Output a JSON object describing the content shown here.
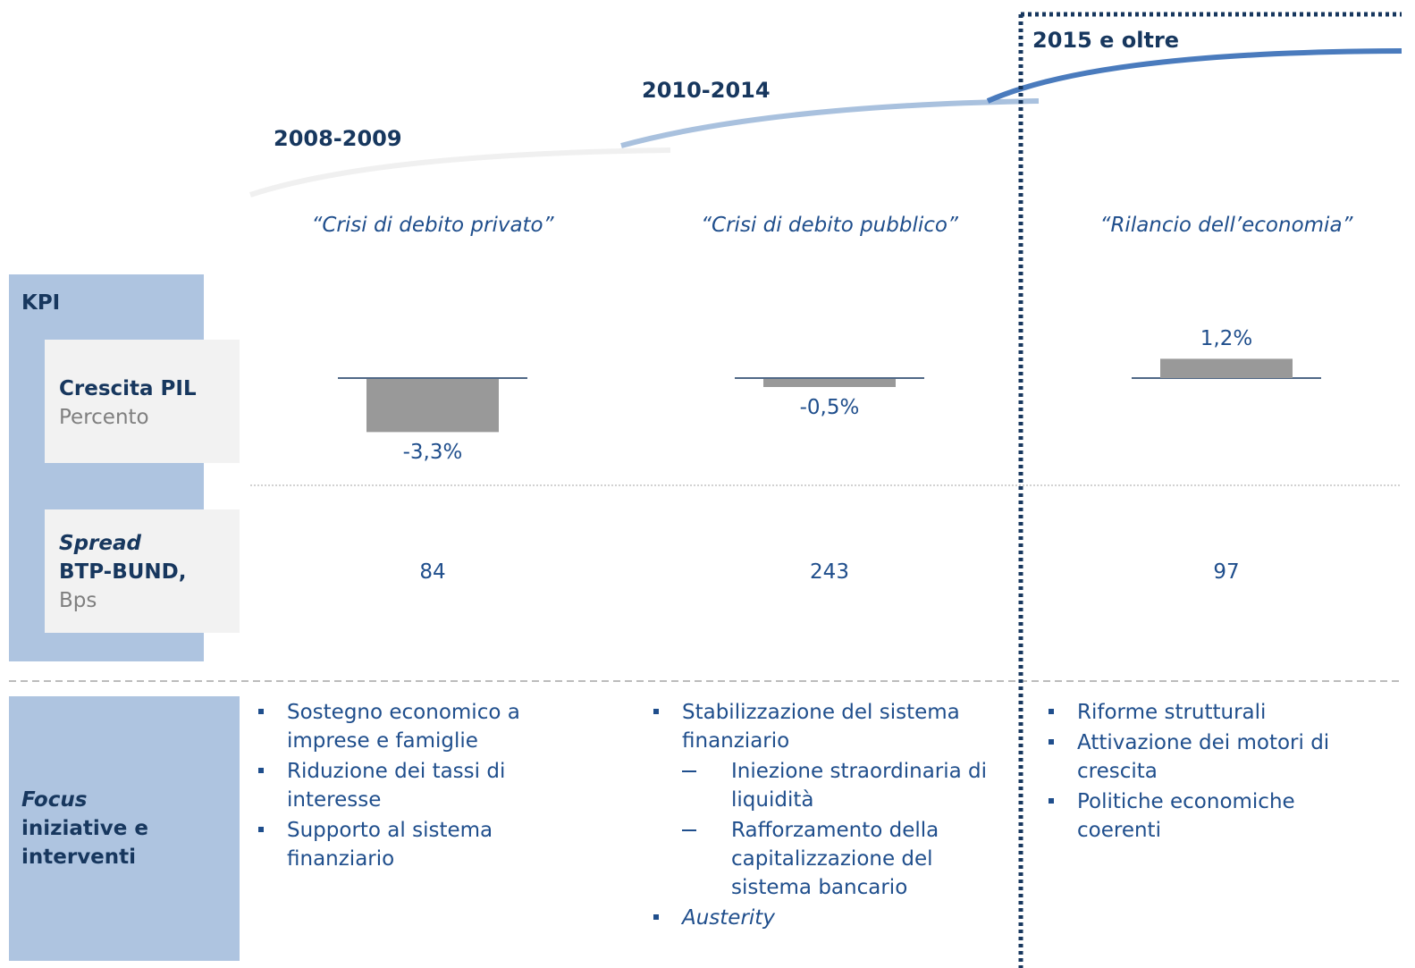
{
  "row_labels": {
    "kpi": "KPI",
    "gdp": {
      "title": "Crescita PIL",
      "unit": "Percento"
    },
    "spread": {
      "title_italic": "Spread",
      "title": "BTP-BUND,",
      "unit": "Bps"
    },
    "focus": {
      "title_italic": "Focus",
      "title": "iniziative e interventi"
    }
  },
  "gdp_scale": {
    "lim": [
      -3.3,
      1.2
    ]
  },
  "periods": [
    {
      "label": "2008-2009",
      "quote": "“Crisi di debito privato”",
      "gdp": {
        "value": -3.3,
        "label": "-3,3%"
      },
      "spread": "84",
      "items": [
        {
          "text": "Sostegno economico a imprese e famiglie"
        },
        {
          "text": "Riduzione dei tassi di interesse"
        },
        {
          "text": "Supporto al sistema finanziario"
        }
      ]
    },
    {
      "label": "2010-2014",
      "quote": "“Crisi di debito pubblico”",
      "gdp": {
        "value": -0.5,
        "label": "-0,5%"
      },
      "spread": "243",
      "items": [
        {
          "text": "Stabilizzazione del sistema finanziario",
          "sub": [
            "Iniezione straordinaria di liquidità",
            "Rafforzamento della capitalizzazione del sistema bancario"
          ]
        },
        {
          "text": "Austerity",
          "italic": true
        }
      ]
    },
    {
      "label": "2015 e oltre",
      "quote": "“Rilancio dell’economia”",
      "gdp": {
        "value": 1.2,
        "label": "1,2%"
      },
      "spread": "97",
      "items": [
        {
          "text": "Riforme strutturali"
        },
        {
          "text": "Attivazione dei motori di crescita"
        },
        {
          "text": "Politiche economiche coerenti"
        }
      ]
    }
  ]
}
